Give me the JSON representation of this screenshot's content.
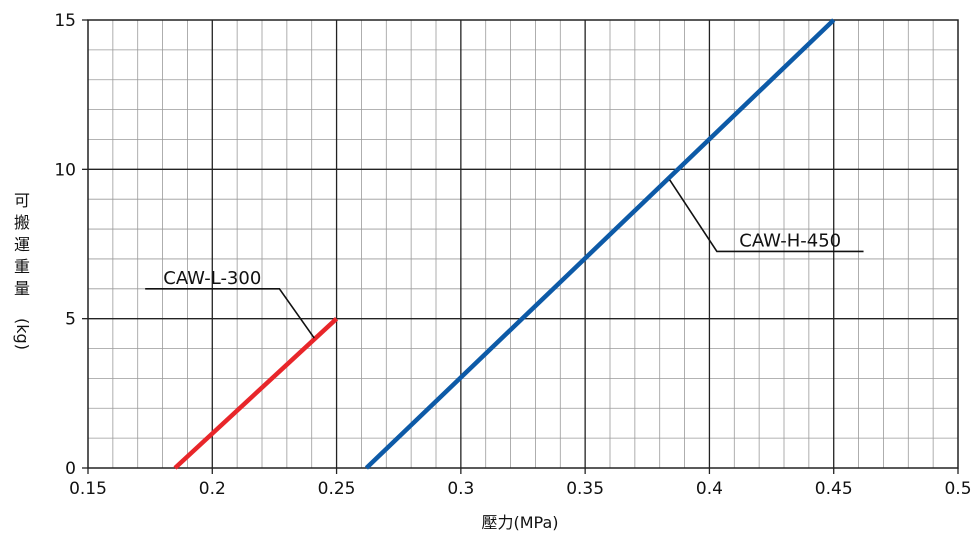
{
  "chart_data": {
    "type": "line",
    "title": "",
    "xlabel": "壓力(MPa)",
    "ylabel_chars": [
      "可",
      "搬",
      "運",
      "重",
      "量",
      "(kg)"
    ],
    "xlim": [
      0.15,
      0.5
    ],
    "ylim": [
      0,
      15
    ],
    "x_ticks": [
      0.15,
      0.2,
      0.25,
      0.3,
      0.35,
      0.4,
      0.45,
      0.5
    ],
    "x_tick_labels": [
      "0.15",
      "0.2",
      "0.25",
      "0.3",
      "0.35",
      "0.4",
      "0.45",
      "0.5"
    ],
    "y_ticks": [
      0,
      5,
      10,
      15
    ],
    "y_tick_labels": [
      "0",
      "5",
      "10",
      "15"
    ],
    "grid": {
      "major_x": 0.05,
      "major_y": 5,
      "minor_x": 0.01,
      "minor_y": 1
    },
    "series": [
      {
        "name": "CAW-L-300",
        "color": "#e8262a",
        "x": [
          0.185,
          0.25
        ],
        "y": [
          0,
          5
        ]
      },
      {
        "name": "CAW-H-450",
        "color": "#0d5aa7",
        "x": [
          0.262,
          0.45
        ],
        "y": [
          0,
          15
        ]
      }
    ],
    "annotations": [
      {
        "text": "CAW-L-300",
        "series": 0,
        "point": [
          0.241,
          4.35
        ],
        "elbow": [
          0.227,
          6.0
        ],
        "label_x": [
          0.173,
          0.227
        ],
        "side": "left"
      },
      {
        "text": "CAW-H-450",
        "series": 1,
        "point": [
          0.384,
          9.65
        ],
        "elbow": [
          0.403,
          7.25
        ],
        "label_x": [
          0.403,
          0.462
        ],
        "side": "right"
      }
    ]
  }
}
